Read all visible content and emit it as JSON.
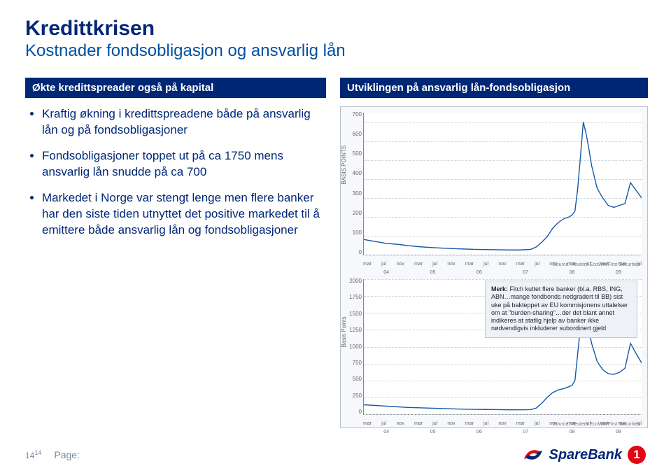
{
  "title": "Kredittkrisen",
  "subtitle": "Kostnader fondsobligasjon og ansvarlig lån",
  "left": {
    "header": "Økte kredittspreader også på kapital",
    "bullets": [
      "Kraftig økning i kredittspreadene både på ansvarlig lån og på fondsobligasjoner",
      "Fondsobligasjoner toppet ut på ca 1750 mens ansvarlig lån snudde på ca 700",
      "Markedet i Norge var stengt lenge men flere banker har den siste tiden utnyttet det positive markedet til å emittere både ansvarlig lån og fondsobligasjoner"
    ]
  },
  "right": {
    "header": "Utviklingen på ansvarlig lån-fondsobligasjon",
    "chart_top": {
      "type": "line",
      "ylabel": "BASIS POINTS",
      "ylim": [
        0,
        750
      ],
      "yticks": [
        0,
        100,
        200,
        300,
        400,
        500,
        600,
        700
      ],
      "xticks": [
        "mar",
        "jul",
        "nov",
        "mar",
        "jul",
        "nov",
        "mar",
        "jul",
        "nov",
        "mar",
        "jul",
        "nov",
        "mar",
        "jul",
        "nov",
        "mar",
        "jul"
      ],
      "years": [
        "04",
        "05",
        "06",
        "07",
        "08",
        "09"
      ],
      "line_color": "#1459a8",
      "line_width": 1.4,
      "background_color": "#ffffff",
      "grid_color": "#d0d6de",
      "source": "Source: Reuters EcoWin/First Securities",
      "points": [
        [
          0,
          80
        ],
        [
          4,
          70
        ],
        [
          8,
          60
        ],
        [
          12,
          55
        ],
        [
          16,
          48
        ],
        [
          20,
          42
        ],
        [
          24,
          38
        ],
        [
          28,
          35
        ],
        [
          32,
          32
        ],
        [
          36,
          30
        ],
        [
          40,
          28
        ],
        [
          44,
          27
        ],
        [
          48,
          26
        ],
        [
          52,
          25
        ],
        [
          56,
          25
        ],
        [
          60,
          28
        ],
        [
          62,
          40
        ],
        [
          64,
          65
        ],
        [
          66,
          95
        ],
        [
          68,
          140
        ],
        [
          70,
          170
        ],
        [
          72,
          190
        ],
        [
          74,
          200
        ],
        [
          75,
          210
        ],
        [
          76,
          230
        ],
        [
          77,
          350
        ],
        [
          78,
          520
        ],
        [
          79,
          700
        ],
        [
          80,
          640
        ],
        [
          81,
          560
        ],
        [
          82,
          470
        ],
        [
          84,
          350
        ],
        [
          86,
          300
        ],
        [
          88,
          260
        ],
        [
          90,
          250
        ],
        [
          92,
          260
        ],
        [
          94,
          270
        ],
        [
          96,
          380
        ],
        [
          98,
          340
        ],
        [
          100,
          300
        ]
      ]
    },
    "chart_bottom": {
      "type": "line",
      "ylabel": "Basis Points",
      "ylim": [
        0,
        2000
      ],
      "yticks": [
        0,
        250,
        500,
        750,
        1000,
        1250,
        1500,
        1750,
        2000
      ],
      "xticks": [
        "mar",
        "jul",
        "nov",
        "mar",
        "jul",
        "nov",
        "mar",
        "jul",
        "nov",
        "mar",
        "jul",
        "nov",
        "mar",
        "jul",
        "nov",
        "mar",
        "jul"
      ],
      "years": [
        "04",
        "05",
        "06",
        "07",
        "08",
        "09"
      ],
      "line_color": "#1459a8",
      "line_width": 1.4,
      "background_color": "#ffffff",
      "grid_color": "#d0d6de",
      "source": "Source: Reuters EcoWin/First Securities",
      "callout": "Merk: Fitch kuttet flere banker (bl.a. RBS, ING, ABN…mange fondbonds nedgradert til BB) sist uke på bakteppet av EU kommisjonens uttalelser om at \"burden-sharing\"…der det blant annet indikeres at statlig hjelp av banker ikke nødvendigvis inkluderer subordinert gjeld",
      "callout_bold": "Merk:",
      "points": [
        [
          0,
          140
        ],
        [
          4,
          130
        ],
        [
          8,
          120
        ],
        [
          12,
          110
        ],
        [
          16,
          100
        ],
        [
          20,
          95
        ],
        [
          24,
          90
        ],
        [
          28,
          85
        ],
        [
          32,
          80
        ],
        [
          36,
          75
        ],
        [
          40,
          72
        ],
        [
          44,
          70
        ],
        [
          48,
          68
        ],
        [
          52,
          66
        ],
        [
          56,
          65
        ],
        [
          60,
          68
        ],
        [
          62,
          90
        ],
        [
          64,
          160
        ],
        [
          66,
          250
        ],
        [
          68,
          320
        ],
        [
          70,
          360
        ],
        [
          72,
          380
        ],
        [
          74,
          410
        ],
        [
          75,
          430
        ],
        [
          76,
          500
        ],
        [
          77,
          900
        ],
        [
          78,
          1300
        ],
        [
          79,
          1750
        ],
        [
          80,
          1600
        ],
        [
          81,
          1250
        ],
        [
          82,
          1050
        ],
        [
          84,
          780
        ],
        [
          86,
          660
        ],
        [
          88,
          600
        ],
        [
          90,
          590
        ],
        [
          92,
          620
        ],
        [
          94,
          680
        ],
        [
          96,
          1050
        ],
        [
          98,
          900
        ],
        [
          100,
          760
        ]
      ]
    }
  },
  "footer": {
    "page_primary": "14",
    "page_secondary": "14",
    "page_label": "Page:",
    "brand_text": "SpareBank",
    "brand_accent": "1"
  },
  "colors": {
    "brand_navy": "#002776",
    "brand_red": "#e30613",
    "text_sub": "#0050a0"
  }
}
